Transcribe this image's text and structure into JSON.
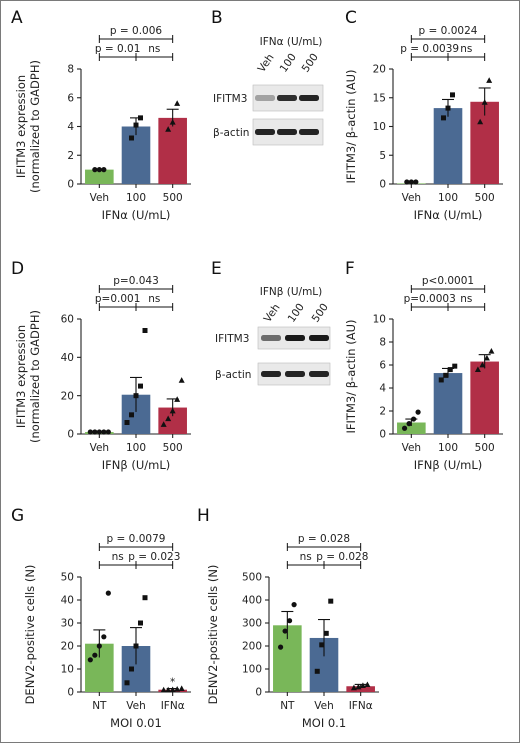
{
  "colors": {
    "green": "#79b759",
    "blue": "#4b6a93",
    "red": "#b12f47",
    "axis": "#222222"
  },
  "chart_data": [
    {
      "panel": "A",
      "type": "bar",
      "categories": [
        "Veh",
        "100",
        "500"
      ],
      "values": [
        1.0,
        4.0,
        4.6
      ],
      "errors": [
        0.02,
        0.6,
        0.6
      ],
      "points": [
        [
          1.0,
          1.0,
          1.0
        ],
        [
          3.2,
          4.1,
          4.6
        ],
        [
          3.8,
          4.3,
          5.6
        ]
      ],
      "point_shapes": [
        "circle",
        "square",
        "triangle"
      ],
      "ylabel": "IFITM3 expression (normalized to GADPH)",
      "xlabel": "IFNα (U/mL)",
      "ylim": [
        0,
        8
      ],
      "yticks": [
        "0",
        "2",
        "4",
        "6",
        "8"
      ],
      "comparisons": [
        {
          "from": 0,
          "to": 2,
          "label": "p = 0.006"
        },
        {
          "from": 0,
          "to": 1,
          "label": "p = 0.01"
        },
        {
          "from": 1,
          "to": 2,
          "label": "ns"
        }
      ]
    },
    {
      "panel": "C",
      "type": "bar",
      "categories": [
        "Veh",
        "100",
        "500"
      ],
      "values": [
        0.1,
        13.2,
        14.3
      ],
      "errors": [
        0.05,
        1.5,
        2.4
      ],
      "points": [
        [
          0.05,
          0.1,
          0.15
        ],
        [
          11.5,
          13.2,
          15.5
        ],
        [
          10.8,
          14.2,
          18.0
        ]
      ],
      "point_shapes": [
        "circle",
        "square",
        "triangle"
      ],
      "ylabel": "IFITM3/ β-actin (AU)",
      "xlabel": "IFNα (U/mL)",
      "ylim": [
        0,
        20
      ],
      "yticks": [
        "0",
        "5",
        "10",
        "15",
        "20"
      ],
      "comparisons": [
        {
          "from": 0,
          "to": 2,
          "label": "p = 0.0024"
        },
        {
          "from": 0,
          "to": 1,
          "label": "p = 0.0039"
        },
        {
          "from": 1,
          "to": 2,
          "label": "ns"
        }
      ]
    },
    {
      "panel": "D",
      "type": "bar",
      "categories": [
        "Veh",
        "100",
        "500"
      ],
      "values": [
        1.0,
        20.5,
        13.8
      ],
      "errors": [
        0.05,
        9.0,
        4.5
      ],
      "points": [
        [
          1.0,
          1.0,
          1.0,
          1.0,
          1.0
        ],
        [
          6,
          10,
          20,
          25,
          54
        ],
        [
          5,
          8,
          12,
          18,
          28
        ]
      ],
      "point_shapes": [
        "circle",
        "square",
        "triangle"
      ],
      "ylabel": "IFITM3 expression (normalized to GADPH)",
      "xlabel": "IFNβ (U/mL)",
      "ylim": [
        0,
        60
      ],
      "yticks": [
        "0",
        "20",
        "40",
        "60"
      ],
      "comparisons": [
        {
          "from": 0,
          "to": 2,
          "label": "p=0.043"
        },
        {
          "from": 0,
          "to": 1,
          "label": "p=0.001"
        },
        {
          "from": 1,
          "to": 2,
          "label": "ns"
        }
      ]
    },
    {
      "panel": "F",
      "type": "bar",
      "categories": [
        "Veh",
        "100",
        "500"
      ],
      "values": [
        1.0,
        5.3,
        6.3
      ],
      "errors": [
        0.3,
        0.4,
        0.6
      ],
      "points": [
        [
          0.5,
          0.9,
          1.3,
          1.9
        ],
        [
          4.7,
          5.1,
          5.6,
          5.9
        ],
        [
          5.6,
          6.0,
          6.6,
          7.2
        ]
      ],
      "point_shapes": [
        "circle",
        "square",
        "triangle"
      ],
      "ylabel": "IFITM3/ β-actin (AU)",
      "xlabel": "IFNβ (U/mL)",
      "ylim": [
        0,
        10
      ],
      "yticks": [
        "0",
        "2",
        "4",
        "6",
        "8",
        "10"
      ],
      "comparisons": [
        {
          "from": 0,
          "to": 2,
          "label": "p<0.0001"
        },
        {
          "from": 0,
          "to": 1,
          "label": "p=0.0003"
        },
        {
          "from": 1,
          "to": 2,
          "label": "ns"
        }
      ]
    },
    {
      "panel": "G",
      "type": "bar",
      "categories": [
        "NT",
        "Veh",
        "IFNα"
      ],
      "values": [
        21,
        20,
        1
      ],
      "errors": [
        6,
        8,
        0.5
      ],
      "points": [
        [
          14,
          16,
          20,
          24,
          43
        ],
        [
          4,
          10,
          20,
          30,
          41
        ],
        [
          0.5,
          0.8,
          1.0,
          1.2,
          1.5
        ]
      ],
      "point_shapes": [
        "circle",
        "square",
        "triangle"
      ],
      "ylabel": "DENV2-positive cells (N)",
      "xlabel": "MOI 0.01",
      "ylim": [
        0,
        50
      ],
      "yticks": [
        "0",
        "10",
        "20",
        "30",
        "40",
        "50"
      ],
      "comparisons": [
        {
          "from": 0,
          "to": 2,
          "label": "p = 0.0079"
        },
        {
          "from": 0,
          "to": 1,
          "label": "ns"
        },
        {
          "from": 1,
          "to": 2,
          "label": "p = 0.023"
        }
      ],
      "annotations": [
        {
          "category": 2,
          "text": "*"
        }
      ]
    },
    {
      "panel": "H",
      "type": "bar",
      "categories": [
        "NT",
        "Veh",
        "IFNα"
      ],
      "values": [
        290,
        235,
        25
      ],
      "errors": [
        60,
        80,
        8
      ],
      "points": [
        [
          195,
          265,
          310,
          380
        ],
        [
          90,
          205,
          255,
          395
        ],
        [
          18,
          22,
          28,
          32
        ]
      ],
      "point_shapes": [
        "circle",
        "square",
        "triangle"
      ],
      "ylabel": "DENV2-positive cells (N)",
      "xlabel": "MOI 0.1",
      "ylim": [
        0,
        500
      ],
      "yticks": [
        "0",
        "100",
        "200",
        "300",
        "400",
        "500"
      ],
      "comparisons": [
        {
          "from": 0,
          "to": 2,
          "label": "p = 0.028"
        },
        {
          "from": 0,
          "to": 1,
          "label": "ns"
        },
        {
          "from": 1,
          "to": 2,
          "label": "p = 0.028"
        }
      ]
    }
  ],
  "blots": [
    {
      "panel": "B",
      "header": "IFNα (U/mL)",
      "lanes": [
        "Veh",
        "100",
        "500"
      ],
      "rows": [
        {
          "label": "IFITM3",
          "intensity": [
            0.35,
            0.9,
            0.95
          ]
        },
        {
          "label": "β-actin",
          "intensity": [
            0.95,
            0.95,
            0.95
          ]
        }
      ]
    },
    {
      "panel": "E",
      "header": "IFNβ (U/mL)",
      "lanes": [
        "Veh",
        "100",
        "500"
      ],
      "rows": [
        {
          "label": "IFITM3",
          "intensity": [
            0.6,
            1.0,
            1.0
          ]
        },
        {
          "label": "β-actin",
          "intensity": [
            0.95,
            0.95,
            0.95
          ]
        }
      ]
    }
  ]
}
